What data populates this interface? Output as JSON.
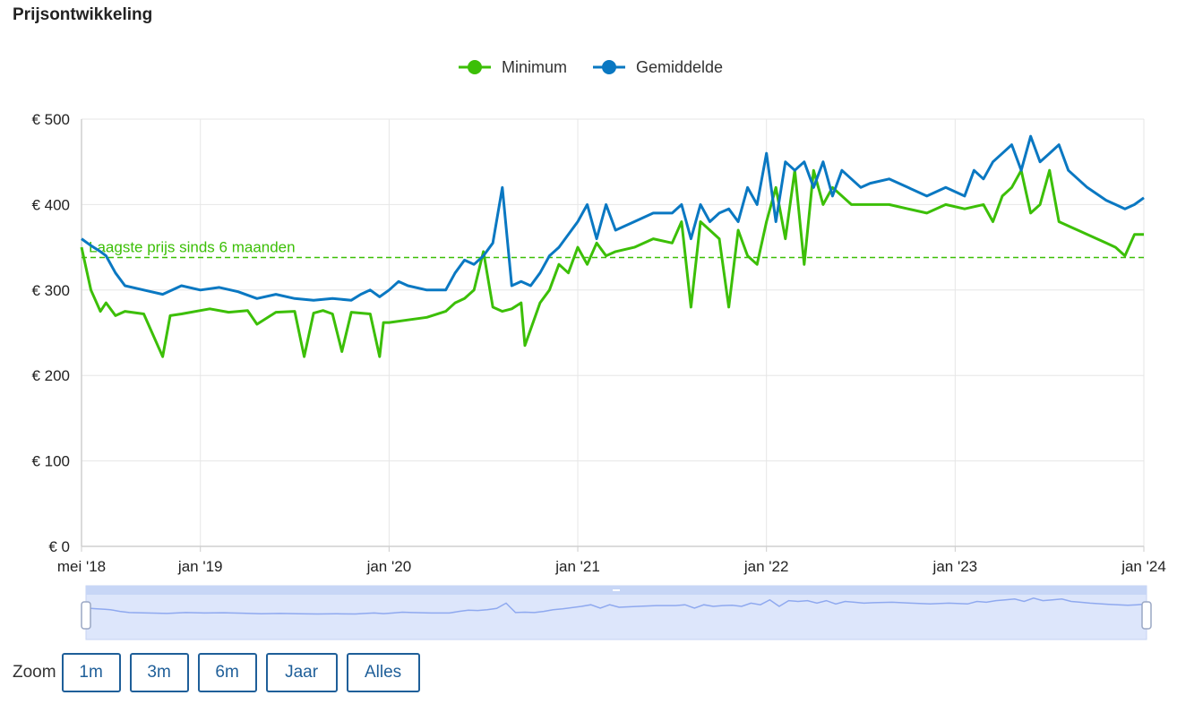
{
  "page": {
    "title": "Prijsontwikkeling"
  },
  "legend": [
    {
      "name": "Minimum",
      "color": "#3cbf07"
    },
    {
      "name": "Gemiddelde",
      "color": "#0a78c2"
    }
  ],
  "zoom": {
    "label": "Zoom",
    "buttons": [
      "1m",
      "3m",
      "6m",
      "Jaar",
      "Alles"
    ]
  },
  "chart_data": {
    "type": "line",
    "title": "Prijsontwikkeling",
    "xlabel": "",
    "ylabel": "",
    "x_unit": "years (decimal)",
    "xlim": [
      2018.37,
      2024.0
    ],
    "ylim": [
      0,
      500
    ],
    "y_ticks": [
      0,
      100,
      200,
      300,
      400,
      500
    ],
    "y_tick_labels": [
      "€ 0",
      "€ 100",
      "€ 200",
      "€ 300",
      "€ 400",
      "€ 500"
    ],
    "x_ticks": [
      2018.37,
      2019.0,
      2020.0,
      2021.0,
      2022.0,
      2023.0,
      2024.0
    ],
    "x_tick_labels": [
      "mei '18",
      "jan '19",
      "jan '20",
      "jan '21",
      "jan '22",
      "jan '23",
      "jan '24"
    ],
    "grid": true,
    "legend_position": "top-center",
    "reference_line": {
      "value": 338,
      "label": "Laagste prijs sinds 6 maanden",
      "color": "#3cbf07",
      "style": "dashed"
    },
    "series": [
      {
        "name": "Minimum",
        "color": "#3cbf07",
        "x": [
          2018.37,
          2018.42,
          2018.47,
          2018.5,
          2018.55,
          2018.6,
          2018.7,
          2018.8,
          2018.84,
          2018.9,
          2019.0,
          2019.05,
          2019.15,
          2019.25,
          2019.3,
          2019.4,
          2019.5,
          2019.55,
          2019.6,
          2019.65,
          2019.7,
          2019.75,
          2019.8,
          2019.9,
          2019.95,
          2019.97,
          2020.0,
          2020.1,
          2020.2,
          2020.3,
          2020.35,
          2020.4,
          2020.45,
          2020.5,
          2020.55,
          2020.6,
          2020.65,
          2020.7,
          2020.72,
          2020.8,
          2020.85,
          2020.9,
          2020.95,
          2021.0,
          2021.05,
          2021.1,
          2021.15,
          2021.2,
          2021.3,
          2021.4,
          2021.5,
          2021.55,
          2021.6,
          2021.65,
          2021.7,
          2021.75,
          2021.8,
          2021.85,
          2021.9,
          2021.95,
          2022.0,
          2022.05,
          2022.1,
          2022.15,
          2022.2,
          2022.25,
          2022.3,
          2022.35,
          2022.45,
          2022.55,
          2022.65,
          2022.75,
          2022.85,
          2022.95,
          2023.05,
          2023.15,
          2023.2,
          2023.25,
          2023.3,
          2023.35,
          2023.4,
          2023.45,
          2023.5,
          2023.55,
          2023.6,
          2023.65,
          2023.7,
          2023.8,
          2023.85,
          2023.9,
          2023.95,
          2024.0
        ],
        "values": [
          350,
          300,
          275,
          285,
          270,
          275,
          272,
          222,
          270,
          272,
          276,
          278,
          274,
          276,
          260,
          274,
          275,
          222,
          273,
          276,
          272,
          228,
          274,
          272,
          222,
          262,
          262,
          265,
          268,
          275,
          285,
          290,
          300,
          345,
          280,
          275,
          278,
          285,
          235,
          285,
          300,
          330,
          320,
          350,
          330,
          355,
          340,
          345,
          350,
          360,
          355,
          380,
          280,
          380,
          370,
          360,
          280,
          370,
          340,
          330,
          380,
          420,
          360,
          440,
          330,
          440,
          400,
          420,
          400,
          400,
          400,
          395,
          390,
          400,
          395,
          400,
          380,
          410,
          420,
          440,
          390,
          400,
          440,
          380,
          375,
          370,
          365,
          355,
          350,
          340,
          365,
          365
        ]
      },
      {
        "name": "Gemiddelde",
        "color": "#0a78c2",
        "x": [
          2018.37,
          2018.42,
          2018.47,
          2018.5,
          2018.55,
          2018.6,
          2018.7,
          2018.8,
          2018.9,
          2019.0,
          2019.1,
          2019.2,
          2019.3,
          2019.4,
          2019.5,
          2019.6,
          2019.7,
          2019.8,
          2019.85,
          2019.9,
          2019.95,
          2020.0,
          2020.05,
          2020.1,
          2020.2,
          2020.3,
          2020.35,
          2020.4,
          2020.45,
          2020.5,
          2020.55,
          2020.6,
          2020.65,
          2020.7,
          2020.75,
          2020.8,
          2020.85,
          2020.9,
          2021.0,
          2021.05,
          2021.1,
          2021.15,
          2021.2,
          2021.3,
          2021.4,
          2021.5,
          2021.55,
          2021.6,
          2021.65,
          2021.7,
          2021.75,
          2021.8,
          2021.85,
          2021.9,
          2021.95,
          2022.0,
          2022.05,
          2022.1,
          2022.15,
          2022.2,
          2022.25,
          2022.3,
          2022.35,
          2022.4,
          2022.45,
          2022.5,
          2022.55,
          2022.65,
          2022.75,
          2022.85,
          2022.95,
          2023.05,
          2023.1,
          2023.15,
          2023.2,
          2023.25,
          2023.3,
          2023.35,
          2023.4,
          2023.45,
          2023.5,
          2023.55,
          2023.6,
          2023.65,
          2023.7,
          2023.8,
          2023.85,
          2023.9,
          2023.95,
          2024.0
        ],
        "values": [
          360,
          352,
          345,
          340,
          320,
          305,
          300,
          295,
          305,
          300,
          303,
          298,
          290,
          295,
          290,
          288,
          290,
          288,
          295,
          300,
          292,
          300,
          310,
          305,
          300,
          300,
          320,
          335,
          330,
          340,
          355,
          420,
          305,
          310,
          305,
          320,
          340,
          350,
          380,
          400,
          360,
          400,
          370,
          380,
          390,
          390,
          400,
          360,
          400,
          380,
          390,
          395,
          380,
          420,
          400,
          460,
          380,
          450,
          440,
          450,
          420,
          450,
          410,
          440,
          430,
          420,
          425,
          430,
          420,
          410,
          420,
          410,
          440,
          430,
          450,
          460,
          470,
          440,
          480,
          450,
          460,
          470,
          440,
          430,
          420,
          405,
          400,
          395,
          400,
          408
        ]
      }
    ],
    "navigator": true
  }
}
